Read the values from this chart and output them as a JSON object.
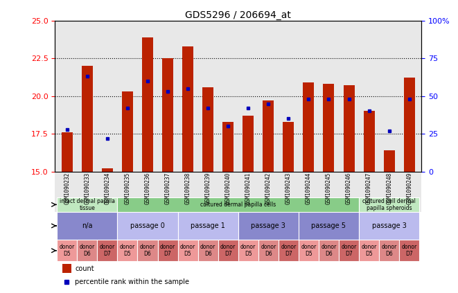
{
  "title": "GDS5296 / 206694_at",
  "samples": [
    "GSM1090232",
    "GSM1090233",
    "GSM1090234",
    "GSM1090235",
    "GSM1090236",
    "GSM1090237",
    "GSM1090238",
    "GSM1090239",
    "GSM1090240",
    "GSM1090241",
    "GSM1090242",
    "GSM1090243",
    "GSM1090244",
    "GSM1090245",
    "GSM1090246",
    "GSM1090247",
    "GSM1090248",
    "GSM1090249"
  ],
  "counts": [
    17.6,
    22.0,
    15.2,
    20.3,
    23.9,
    22.5,
    23.3,
    20.6,
    18.3,
    18.7,
    19.7,
    18.3,
    20.9,
    20.8,
    20.7,
    19.0,
    16.4,
    21.2
  ],
  "percentiles": [
    28,
    63,
    22,
    42,
    60,
    53,
    55,
    42,
    30,
    42,
    45,
    35,
    48,
    48,
    48,
    40,
    27,
    48
  ],
  "ylim": [
    15,
    25
  ],
  "y2lim": [
    0,
    100
  ],
  "yticks": [
    15,
    17.5,
    20,
    22.5,
    25
  ],
  "y2ticks": [
    0,
    25,
    50,
    75,
    100
  ],
  "bar_color": "#bb2200",
  "dot_color": "#0000bb",
  "cell_type_groups": [
    {
      "label": "intact dermal papilla\ntissue",
      "start": 0,
      "end": 3,
      "color": "#c0e8c0"
    },
    {
      "label": "cultured dermal papilla cells",
      "start": 3,
      "end": 15,
      "color": "#88cc88"
    },
    {
      "label": "cultured cell dermal\npapilla spheroids",
      "start": 15,
      "end": 18,
      "color": "#c0e8c0"
    }
  ],
  "other_groups": [
    {
      "label": "n/a",
      "start": 0,
      "end": 3,
      "color": "#8888cc"
    },
    {
      "label": "passage 0",
      "start": 3,
      "end": 6,
      "color": "#bbbbee"
    },
    {
      "label": "passage 1",
      "start": 6,
      "end": 9,
      "color": "#bbbbee"
    },
    {
      "label": "passage 3",
      "start": 9,
      "end": 12,
      "color": "#8888cc"
    },
    {
      "label": "passage 5",
      "start": 12,
      "end": 15,
      "color": "#8888cc"
    },
    {
      "label": "passage 3",
      "start": 15,
      "end": 18,
      "color": "#bbbbee"
    }
  ],
  "individual_colors": [
    "#ee9999",
    "#dd8888",
    "#cc7777",
    "#ee9999",
    "#dd8888",
    "#cc7777",
    "#ee9999",
    "#dd8888",
    "#cc7777",
    "#ee9999",
    "#dd8888",
    "#cc7777",
    "#ee9999",
    "#dd8888",
    "#cc7777",
    "#ee9999",
    "#dd8888",
    "#cc7777"
  ],
  "individual_labels": [
    "donor\nD5",
    "donor\nD6",
    "donor\nD7",
    "donor\nD5",
    "donor\nD6",
    "donor\nD7",
    "donor\nD5",
    "donor\nD6",
    "donor\nD7",
    "donor\nD5",
    "donor\nD6",
    "donor\nD7",
    "donor\nD5",
    "donor\nD6",
    "donor\nD7",
    "donor\nD5",
    "donor\nD6",
    "donor\nD7"
  ],
  "individual_base_color": "#f0a0a0",
  "legend_count_label": "count",
  "legend_percentile_label": "percentile rank within the sample",
  "bg_color": "#e8e8e8"
}
